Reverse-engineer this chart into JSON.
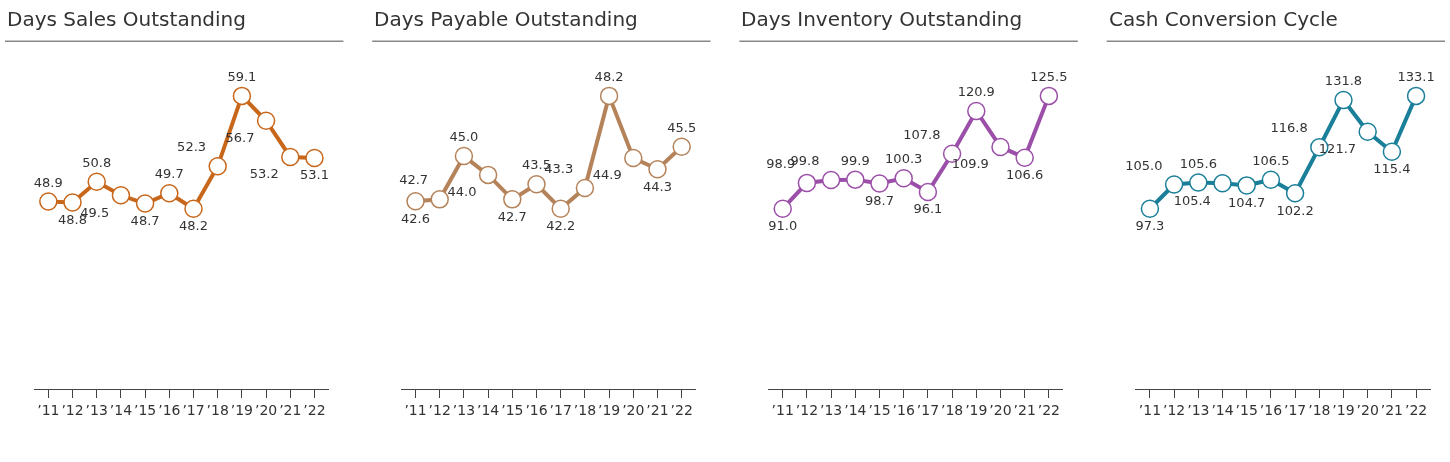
{
  "chart_data": [
    {
      "type": "line",
      "title": "Days Sales Outstanding",
      "categories": [
        "’11",
        "’12",
        "’13",
        "’14",
        "’15",
        "’16",
        "’17",
        "’18",
        "’19",
        "’20",
        "’21",
        "’22"
      ],
      "values": [
        48.9,
        48.8,
        50.8,
        49.5,
        48.7,
        49.7,
        48.2,
        52.3,
        59.1,
        56.7,
        53.2,
        53.1
      ],
      "value_labels": [
        "48.9",
        "48.8",
        "50.8",
        "49.5",
        "48.7",
        "49.7",
        "48.2",
        "52.3",
        "59.1",
        "56.7",
        "53.2",
        "53.1"
      ],
      "color": "#c8661a",
      "marker": "circle"
    },
    {
      "type": "line",
      "title": "Days Payable Outstanding",
      "categories": [
        "’11",
        "’12",
        "’13",
        "’14",
        "’15",
        "’16",
        "’17",
        "’18",
        "’19",
        "’20",
        "’21",
        "’22"
      ],
      "values": [
        42.6,
        42.7,
        45.0,
        44.0,
        42.7,
        43.5,
        42.2,
        43.3,
        48.2,
        44.9,
        44.3,
        45.5
      ],
      "value_labels": [
        "42.6",
        "42.7",
        "45.0",
        "44.0",
        "42.7",
        "43.5",
        "42.2",
        "43.3",
        "48.2",
        "44.9",
        "44.3",
        "45.5"
      ],
      "color": "#b5835a",
      "marker": "circle"
    },
    {
      "type": "line",
      "title": "Days Inventory Outstanding",
      "categories": [
        "’11",
        "’12",
        "’13",
        "’14",
        "’15",
        "’16",
        "’17",
        "’18",
        "’19",
        "’20",
        "’21",
        "’22"
      ],
      "values": [
        91.0,
        98.9,
        99.8,
        99.9,
        98.7,
        100.3,
        96.1,
        107.8,
        120.9,
        109.9,
        106.6,
        125.5
      ],
      "value_labels": [
        "91.0",
        "98.9",
        "99.8",
        "99.9",
        "98.7",
        "100.3",
        "96.1",
        "107.8",
        "120.9",
        "109.9",
        "106.6",
        "125.5"
      ],
      "color": "#9b4fa8",
      "marker": "circle"
    },
    {
      "type": "line",
      "title": "Cash Conversion Cycle",
      "categories": [
        "’11",
        "’12",
        "’13",
        "’14",
        "’15",
        "’16",
        "’17",
        "’18",
        "’19",
        "’20",
        "’21",
        "’22"
      ],
      "values": [
        97.3,
        105.0,
        105.6,
        105.4,
        104.7,
        106.5,
        102.2,
        116.8,
        131.8,
        121.7,
        115.4,
        133.1
      ],
      "value_labels": [
        "97.3",
        "105.0",
        "105.6",
        "105.4",
        "104.7",
        "106.5",
        "102.2",
        "116.8",
        "131.8",
        "121.7",
        "115.4",
        "133.1"
      ],
      "color": "#1a7f99",
      "marker": "circle"
    }
  ]
}
